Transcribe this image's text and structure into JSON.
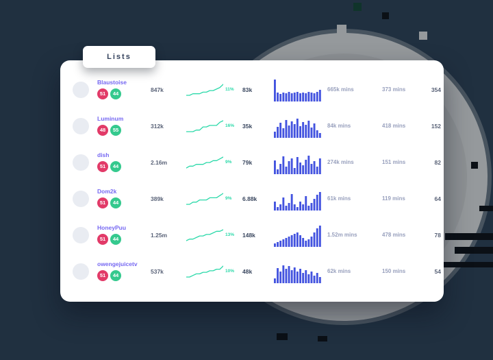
{
  "tab": {
    "label": "Lists"
  },
  "colors": {
    "page_bg": "#203040",
    "card_bg": "#ffffff",
    "name_accent": "#7668f2",
    "badge_red": "#e23a68",
    "badge_green": "#35c98e",
    "spark": "#2bd9a9",
    "bars": "#4353df"
  },
  "table": {
    "rows": [
      {
        "name": "Blaustoise",
        "badge_red": "51",
        "badge_green": "44",
        "followers": "847k",
        "spark_pct": "11%",
        "spark": [
          2,
          2,
          3,
          3,
          3,
          4,
          4,
          5,
          5,
          6,
          7,
          9
        ],
        "value2": "83k",
        "bars": [
          32,
          13,
          11,
          13,
          12,
          14,
          12,
          13,
          14,
          12,
          13,
          12,
          14,
          13,
          12,
          14,
          17
        ],
        "mins1": "665k mins",
        "mins2": "373 mins",
        "count": "354"
      },
      {
        "name": "Luminum",
        "badge_red": "48",
        "badge_green": "55",
        "followers": "312k",
        "spark_pct": "16%",
        "spark": [
          2,
          2,
          2,
          3,
          3,
          5,
          5,
          6,
          6,
          6,
          8,
          9
        ],
        "value2": "35k",
        "bars": [
          9,
          16,
          22,
          14,
          26,
          18,
          24,
          20,
          28,
          17,
          23,
          19,
          25,
          15,
          21,
          11,
          7
        ],
        "mins1": "84k mins",
        "mins2": "418 mins",
        "count": "152"
      },
      {
        "name": "dish",
        "badge_red": "51",
        "badge_green": "44",
        "followers": "2.16m",
        "spark_pct": "9%",
        "spark": [
          2,
          3,
          3,
          4,
          4,
          4,
          5,
          5,
          6,
          6,
          7,
          8
        ],
        "value2": "79k",
        "bars": [
          20,
          7,
          15,
          26,
          11,
          19,
          23,
          9,
          25,
          17,
          13,
          21,
          27,
          15,
          19,
          11,
          23
        ],
        "mins1": "274k mins",
        "mins2": "151 mins",
        "count": "82"
      },
      {
        "name": "Dom2k",
        "badge_red": "51",
        "badge_green": "44",
        "followers": "389k",
        "spark_pct": "9%",
        "spark": [
          2,
          2,
          3,
          3,
          4,
          4,
          4,
          5,
          5,
          5,
          6,
          7
        ],
        "value2": "6.88k",
        "bars": [
          13,
          5,
          9,
          19,
          7,
          11,
          24,
          9,
          5,
          13,
          9,
          21,
          7,
          11,
          17,
          23,
          27
        ],
        "mins1": "61k mins",
        "mins2": "119 mins",
        "count": "64"
      },
      {
        "name": "HoneyPuu",
        "badge_red": "51",
        "badge_green": "44",
        "followers": "1.25m",
        "spark_pct": "13%",
        "spark": [
          2,
          3,
          3,
          4,
          5,
          5,
          6,
          6,
          7,
          8,
          8,
          9
        ],
        "value2": "148k",
        "bars": [
          5,
          7,
          9,
          11,
          13,
          15,
          17,
          19,
          21,
          17,
          13,
          9,
          11,
          15,
          21,
          27,
          31
        ],
        "mins1": "1.52m mins",
        "mins2": "478 mins",
        "count": "78"
      },
      {
        "name": "owengejuicetv",
        "badge_red": "51",
        "badge_green": "44",
        "followers": "537k",
        "spark_pct": "10%",
        "spark": [
          2,
          2,
          3,
          4,
          4,
          5,
          5,
          6,
          6,
          7,
          7,
          9
        ],
        "value2": "48k",
        "bars": [
          7,
          22,
          17,
          26,
          21,
          25,
          19,
          23,
          17,
          21,
          15,
          19,
          13,
          17,
          11,
          15,
          9
        ],
        "mins1": "62k mins",
        "mins2": "150 mins",
        "count": "54"
      }
    ]
  }
}
